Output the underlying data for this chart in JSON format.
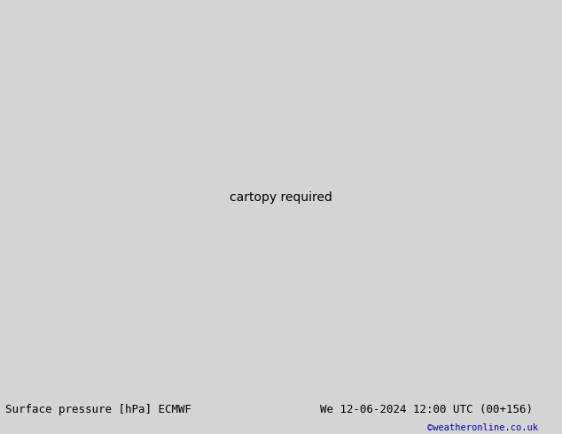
{
  "title_left": "Surface pressure [hPa] ECMWF",
  "title_right": "We 12-06-2024 12:00 UTC (00+156)",
  "copyright": "©weatheronline.co.uk",
  "background_color": "#d4d4d4",
  "land_color": "#c8f0c0",
  "sea_color": "#d4d4d4",
  "coast_color": "#888888",
  "isobar_red": "#ff0000",
  "isobar_black": "#000000",
  "isobar_blue": "#0000ff",
  "bottom_bar_color": "#ffffff",
  "text_color": "#000000",
  "blue_text_color": "#0000bb",
  "font_size_bottom": 9,
  "fig_width": 6.34,
  "fig_height": 4.9,
  "lon_min": -12.5,
  "lon_max": 12.5,
  "lat_min": 44.5,
  "lat_max": 62.5
}
